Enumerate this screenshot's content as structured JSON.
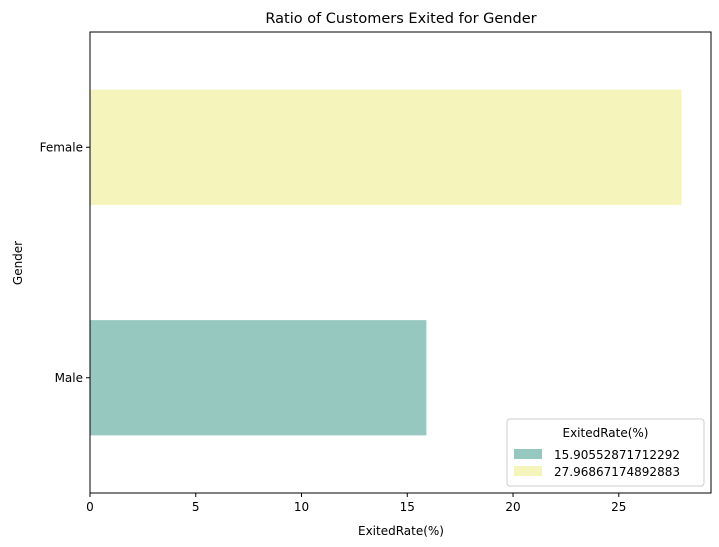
{
  "chart_data": {
    "type": "bar",
    "orientation": "horizontal",
    "title": "Ratio of Customers Exited for Gender",
    "xlabel": "ExitedRate(%)",
    "ylabel": "Gender",
    "xlim": [
      0,
      29.36
    ],
    "xticks": [
      0,
      5,
      10,
      15,
      20,
      25
    ],
    "categories": [
      "Male",
      "Female"
    ],
    "values": [
      15.90552871712292,
      27.96867174892883
    ],
    "colors": [
      "#97c8c0",
      "#f5f5bb"
    ],
    "grid": false,
    "legend": {
      "title": "ExitedRate(%)",
      "placement": "lower-right",
      "entries": [
        "15.90552871712292",
        "27.96867174892883"
      ]
    }
  }
}
